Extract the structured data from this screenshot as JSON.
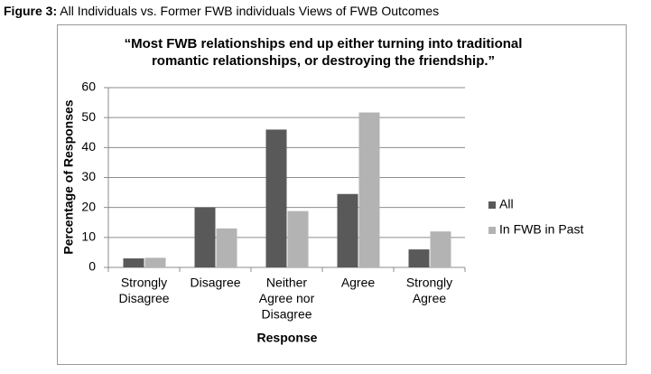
{
  "figure_label": "Figure 3:",
  "figure_caption": "All Individuals vs. Former FWB individuals Views of FWB Outcomes",
  "chart_data": {
    "type": "bar",
    "title": [
      "“Most FWB relationships end up either turning into traditional",
      "romantic  relationships, or destroying the friendship.”"
    ],
    "categories": [
      [
        "Strongly",
        "Disagree"
      ],
      [
        "Disagree"
      ],
      [
        "Neither",
        "Agree nor",
        "Disagree"
      ],
      [
        "Agree"
      ],
      [
        "Strongly",
        "Agree"
      ]
    ],
    "series": [
      {
        "name": "All",
        "color": "#595959",
        "values": [
          3,
          20,
          46,
          24.5,
          6
        ]
      },
      {
        "name": "In FWB in Past",
        "color": "#b3b3b3",
        "values": [
          3.2,
          13,
          18.8,
          51.7,
          12
        ]
      }
    ],
    "x_label": "Response",
    "y_label": "Percentage of Responses",
    "ylim": [
      0,
      60
    ],
    "yticks": [
      0,
      10,
      20,
      30,
      40,
      50,
      60
    ],
    "grid": true,
    "legend": "right"
  }
}
